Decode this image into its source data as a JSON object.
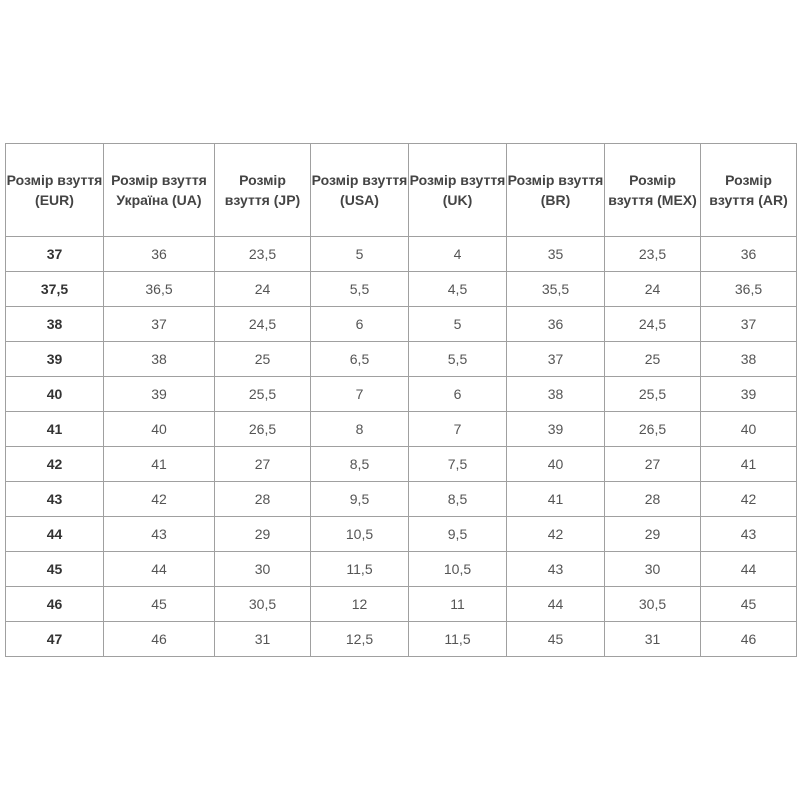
{
  "headers": [
    "Розмір взуття (EUR)",
    "Розмір взуття Україна (UA)",
    "Розмір взуття (JP)",
    "Розмір взуття (USA)",
    "Розмір взуття (UK)",
    "Розмір взуття (BR)",
    "Розмір взуття (MEX)",
    "Розмір взуття (AR)"
  ],
  "rows": [
    [
      "37",
      "36",
      "23,5",
      "5",
      "4",
      "35",
      "23,5",
      "36"
    ],
    [
      "37,5",
      "36,5",
      "24",
      "5,5",
      "4,5",
      "35,5",
      "24",
      "36,5"
    ],
    [
      "38",
      "37",
      "24,5",
      "6",
      "5",
      "36",
      "24,5",
      "37"
    ],
    [
      "39",
      "38",
      "25",
      "6,5",
      "5,5",
      "37",
      "25",
      "38"
    ],
    [
      "40",
      "39",
      "25,5",
      "7",
      "6",
      "38",
      "25,5",
      "39"
    ],
    [
      "41",
      "40",
      "26,5",
      "8",
      "7",
      "39",
      "26,5",
      "40"
    ],
    [
      "42",
      "41",
      "27",
      "8,5",
      "7,5",
      "40",
      "27",
      "41"
    ],
    [
      "43",
      "42",
      "28",
      "9,5",
      "8,5",
      "41",
      "28",
      "42"
    ],
    [
      "44",
      "43",
      "29",
      "10,5",
      "9,5",
      "42",
      "29",
      "43"
    ],
    [
      "45",
      "44",
      "30",
      "11,5",
      "10,5",
      "43",
      "30",
      "44"
    ],
    [
      "46",
      "45",
      "30,5",
      "12",
      "11",
      "44",
      "30,5",
      "45"
    ],
    [
      "47",
      "46",
      "31",
      "12,5",
      "11,5",
      "45",
      "31",
      "46"
    ]
  ]
}
